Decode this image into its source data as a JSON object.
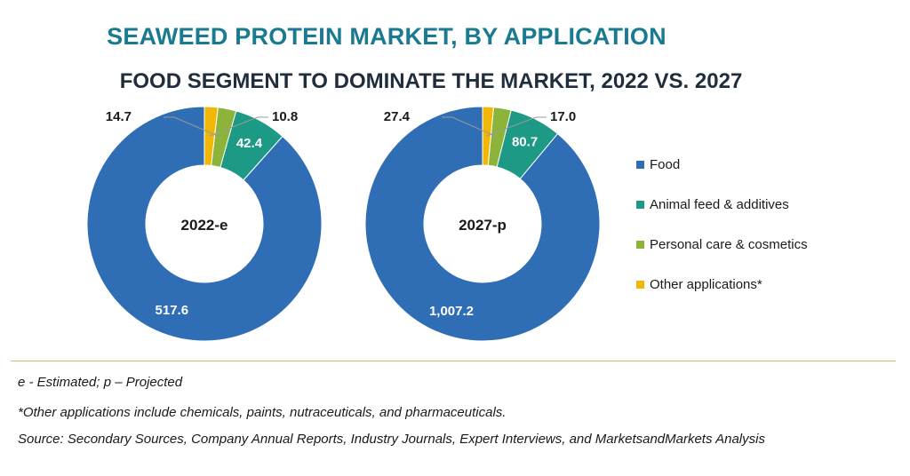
{
  "title": "SEAWEED PROTEIN MARKET, BY APPLICATION",
  "subtitle": "FOOD SEGMENT TO DOMINATE THE MARKET, 2022 VS. 2027",
  "colors": {
    "food": "#2f6eb5",
    "animal_feed": "#1c9a85",
    "personal_care": "#8db43a",
    "other": "#f2b705"
  },
  "legend": [
    {
      "label": "Food",
      "color": "#2f6eb5"
    },
    {
      "label": "Animal feed & additives",
      "color": "#1c9a85"
    },
    {
      "label": "Personal care & cosmetics",
      "color": "#8db43a"
    },
    {
      "label": "Other applications*",
      "color": "#f2b705"
    }
  ],
  "chart_data": [
    {
      "type": "pie",
      "donut": true,
      "center_label": "2022-e",
      "categories": [
        "Food",
        "Animal feed & additives",
        "Personal care & cosmetics",
        "Other applications*"
      ],
      "values": [
        517.6,
        42.4,
        14.7,
        10.8
      ],
      "value_labels": [
        "517.6",
        "42.4",
        "14.7",
        "10.8"
      ]
    },
    {
      "type": "pie",
      "donut": true,
      "center_label": "2027-p",
      "categories": [
        "Food",
        "Animal feed & additives",
        "Personal care & cosmetics",
        "Other applications*"
      ],
      "values": [
        1007.2,
        80.7,
        27.4,
        17.0
      ],
      "value_labels": [
        "1,007.2",
        "80.7",
        "27.4",
        "17.0"
      ]
    }
  ],
  "notes": {
    "n1": "e - Estimated; p – Projected",
    "n2": "*Other applications include chemicals, paints, nutraceuticals, and pharmaceuticals.",
    "n3": "Source: Secondary Sources, Company Annual Reports, Industry Journals, Expert Interviews, and MarketsandMarkets Analysis"
  }
}
